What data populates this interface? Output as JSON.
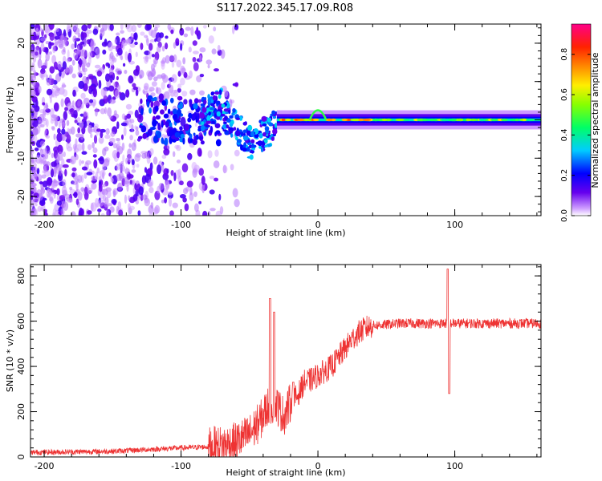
{
  "figure": {
    "title": "S117.2022.345.17.09.R08"
  },
  "chart_data": [
    {
      "type": "heatmap",
      "panel": "spectrogram",
      "xlabel": "Height of straight line (km)",
      "ylabel": "Frequency (Hz)",
      "xlim": [
        -210,
        163
      ],
      "ylim": [
        -25,
        25
      ],
      "xticks": [
        -200,
        -100,
        0,
        100
      ],
      "yticks": [
        -20,
        -10,
        0,
        10,
        20
      ],
      "colorbar": {
        "label": "Normalized spectral amplitude",
        "range": [
          0,
          0.95
        ],
        "ticks": [
          "0.0",
          "0.2",
          "0.4",
          "0.6",
          "0.8"
        ],
        "tick_values": [
          0.0,
          0.2,
          0.4,
          0.6,
          0.8
        ],
        "colormap": "rainbow (violet → blue → cyan → green → yellow → orange → red → magenta)"
      },
      "description_of_signal": {
        "noise_region_x": [
          -210,
          -80
        ],
        "transition_region_x": [
          -80,
          -30
        ],
        "carrier_line_x": [
          -30,
          163
        ],
        "carrier_frequency_hz": 0
      }
    },
    {
      "type": "line",
      "panel": "snr",
      "xlabel": "Height of straight line (km)",
      "ylabel": "SNR (10 * v/v)",
      "xlim": [
        -210,
        163
      ],
      "ylim": [
        0,
        850
      ],
      "xticks": [
        -200,
        -100,
        0,
        100
      ],
      "yticks": [
        0,
        200,
        400,
        600,
        800
      ],
      "color": "#ee3333",
      "series_envelope": {
        "x": [
          -210,
          -150,
          -100,
          -80,
          -70,
          -60,
          -50,
          -42,
          -36,
          -30,
          -25,
          -20,
          -15,
          -10,
          -5,
          0,
          5,
          10,
          15,
          20,
          25,
          30,
          35,
          40,
          50,
          60,
          70,
          80,
          90,
          95,
          100,
          110,
          120,
          130,
          140,
          150,
          163
        ],
        "y": [
          20,
          25,
          40,
          45,
          50,
          65,
          100,
          160,
          230,
          230,
          180,
          240,
          270,
          330,
          340,
          360,
          380,
          400,
          440,
          480,
          520,
          550,
          570,
          580,
          585,
          590,
          590,
          590,
          590,
          590,
          590,
          590,
          590,
          590,
          590,
          590,
          590
        ]
      },
      "spikes": [
        {
          "x": -35,
          "y": 700
        },
        {
          "x": -32,
          "y": 640
        },
        {
          "x": -18,
          "y": 330
        },
        {
          "x": 95,
          "y": 830
        },
        {
          "x": 96,
          "y": 280
        }
      ]
    }
  ]
}
